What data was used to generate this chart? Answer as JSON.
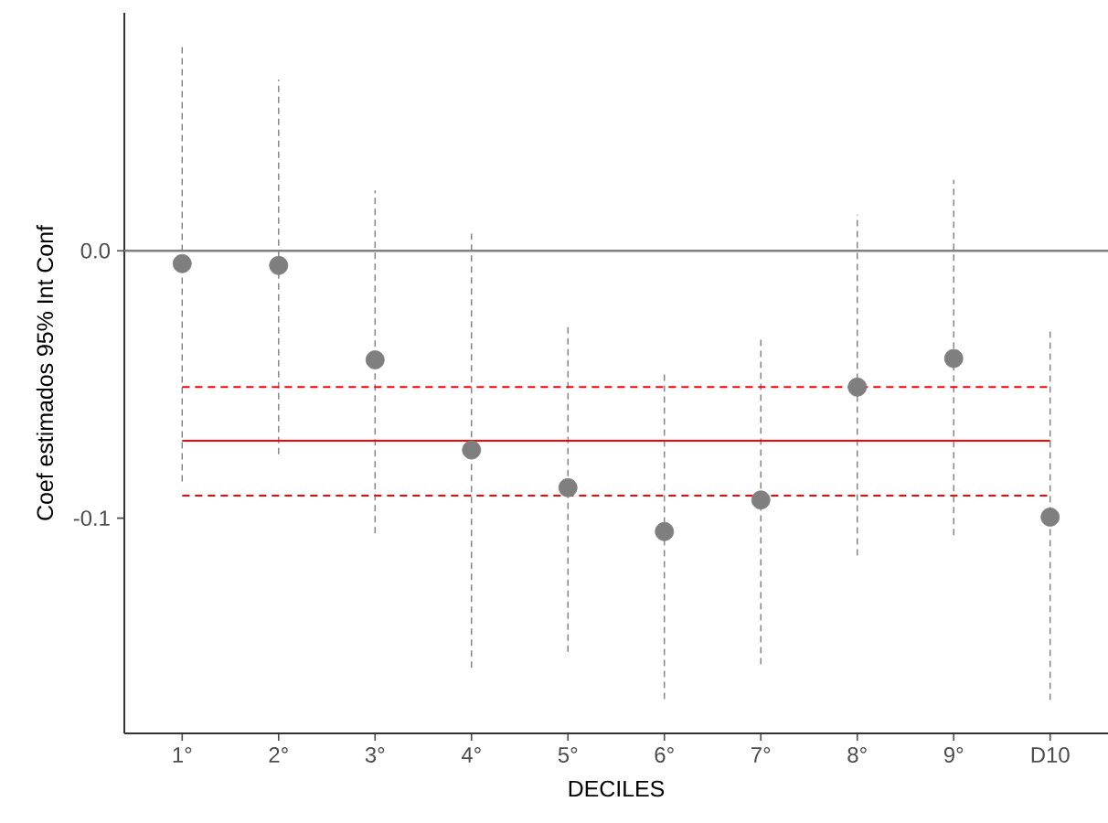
{
  "chart_data": {
    "type": "scatter",
    "xlabel": "DECILES",
    "ylabel": "Coef estimados 95% Int Conf",
    "categories": [
      "1°",
      "2°",
      "3°",
      "4°",
      "5°",
      "6°",
      "7°",
      "8°",
      "9°",
      "D10"
    ],
    "ylim": [
      -0.1805,
      0.089
    ],
    "yticks": [
      {
        "value": 0,
        "label": "0.0"
      },
      {
        "value": -0.1,
        "label": "-0.1"
      }
    ],
    "marker": "circle",
    "ref_lines": [
      {
        "axis": "y",
        "value": 0,
        "color": "#808080"
      }
    ],
    "series": [
      {
        "color": "#7f7f7f",
        "values": [
          -0.0048,
          -0.0055,
          -0.0408,
          -0.0745,
          -0.0886,
          -0.105,
          -0.0932,
          -0.051,
          -0.0403,
          -0.0996
        ],
        "errors": [
          [
            -0.0863,
            0.0766
          ],
          [
            -0.0761,
            0.064
          ],
          [
            -0.1057,
            0.0226
          ],
          [
            -0.156,
            0.0064
          ],
          [
            -0.15,
            -0.0282
          ],
          [
            -0.1677,
            -0.0449
          ],
          [
            -0.1547,
            -0.0321
          ],
          [
            -0.114,
            0.0135
          ],
          [
            -0.1064,
            0.0265
          ],
          [
            -0.168,
            -0.0294
          ]
        ]
      },
      {
        "type": "line",
        "color": "#ff0000",
        "line_style": "solid",
        "marker": "none",
        "values": [
          -0.0711,
          -0.0711,
          -0.0711,
          -0.0711,
          -0.0711,
          -0.0711,
          -0.0711,
          -0.0711,
          -0.0711,
          -0.0711
        ]
      },
      {
        "type": "line",
        "color": "#ff0000",
        "line_style": "dashed",
        "marker": "none",
        "values": [
          -0.051,
          -0.051,
          -0.051,
          -0.051,
          -0.051,
          -0.051,
          -0.051,
          -0.051,
          -0.051,
          -0.051
        ]
      },
      {
        "type": "line",
        "color": "#ff0000",
        "line_style": "dashed",
        "marker": "none",
        "values": [
          -0.0916,
          -0.0916,
          -0.0916,
          -0.0916,
          -0.0916,
          -0.0916,
          -0.0916,
          -0.0916,
          -0.0916,
          -0.0916
        ]
      }
    ]
  }
}
